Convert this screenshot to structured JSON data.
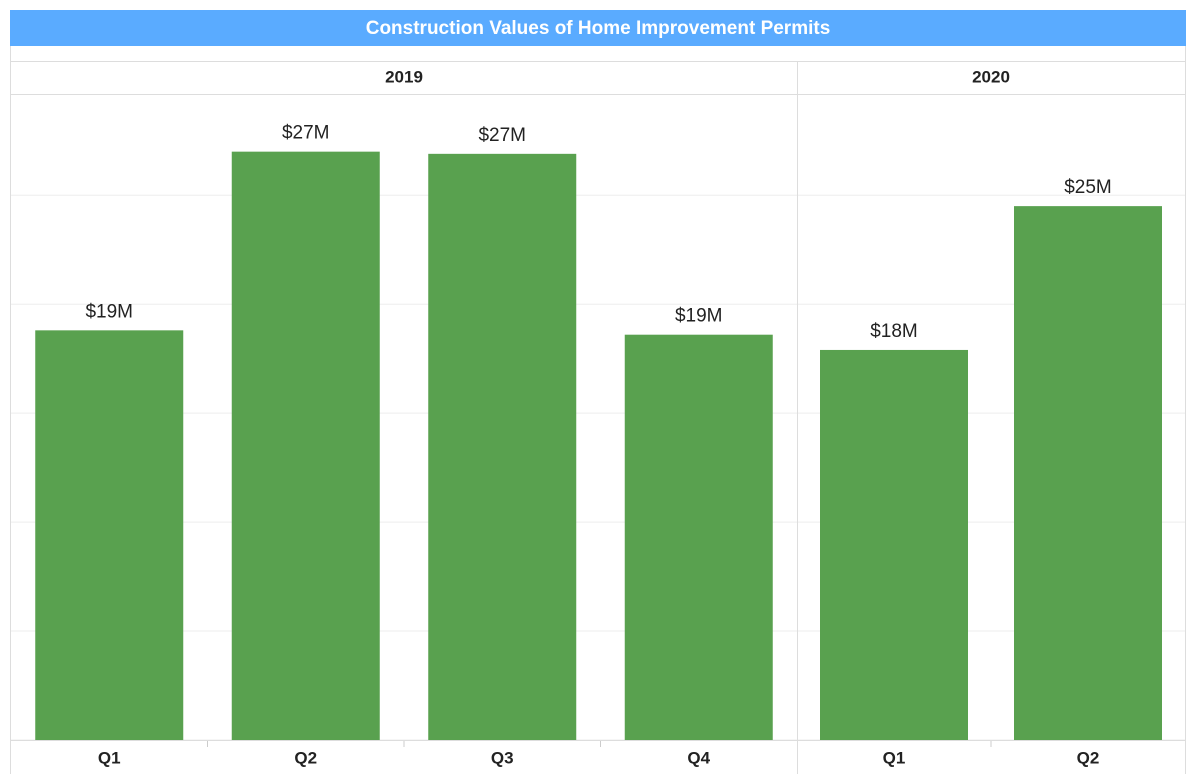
{
  "chart_data": {
    "type": "bar",
    "title": "Construction Values of Home Improvement Permits",
    "color": "#59a14f",
    "grid": true,
    "ylim": [
      0,
      29.6
    ],
    "yticks": [
      0,
      5,
      10,
      15,
      20,
      25
    ],
    "panels": [
      {
        "name": "2019",
        "categories": [
          "Q1",
          "Q2",
          "Q3",
          "Q4"
        ],
        "values": [
          18.8,
          27.0,
          26.9,
          18.6
        ],
        "value_labels": [
          "$19M",
          "$27M",
          "$27M",
          "$19M"
        ]
      },
      {
        "name": "2020",
        "categories": [
          "Q1",
          "Q2"
        ],
        "values": [
          17.9,
          24.5
        ],
        "value_labels": [
          "$18M",
          "$25M"
        ]
      }
    ]
  }
}
